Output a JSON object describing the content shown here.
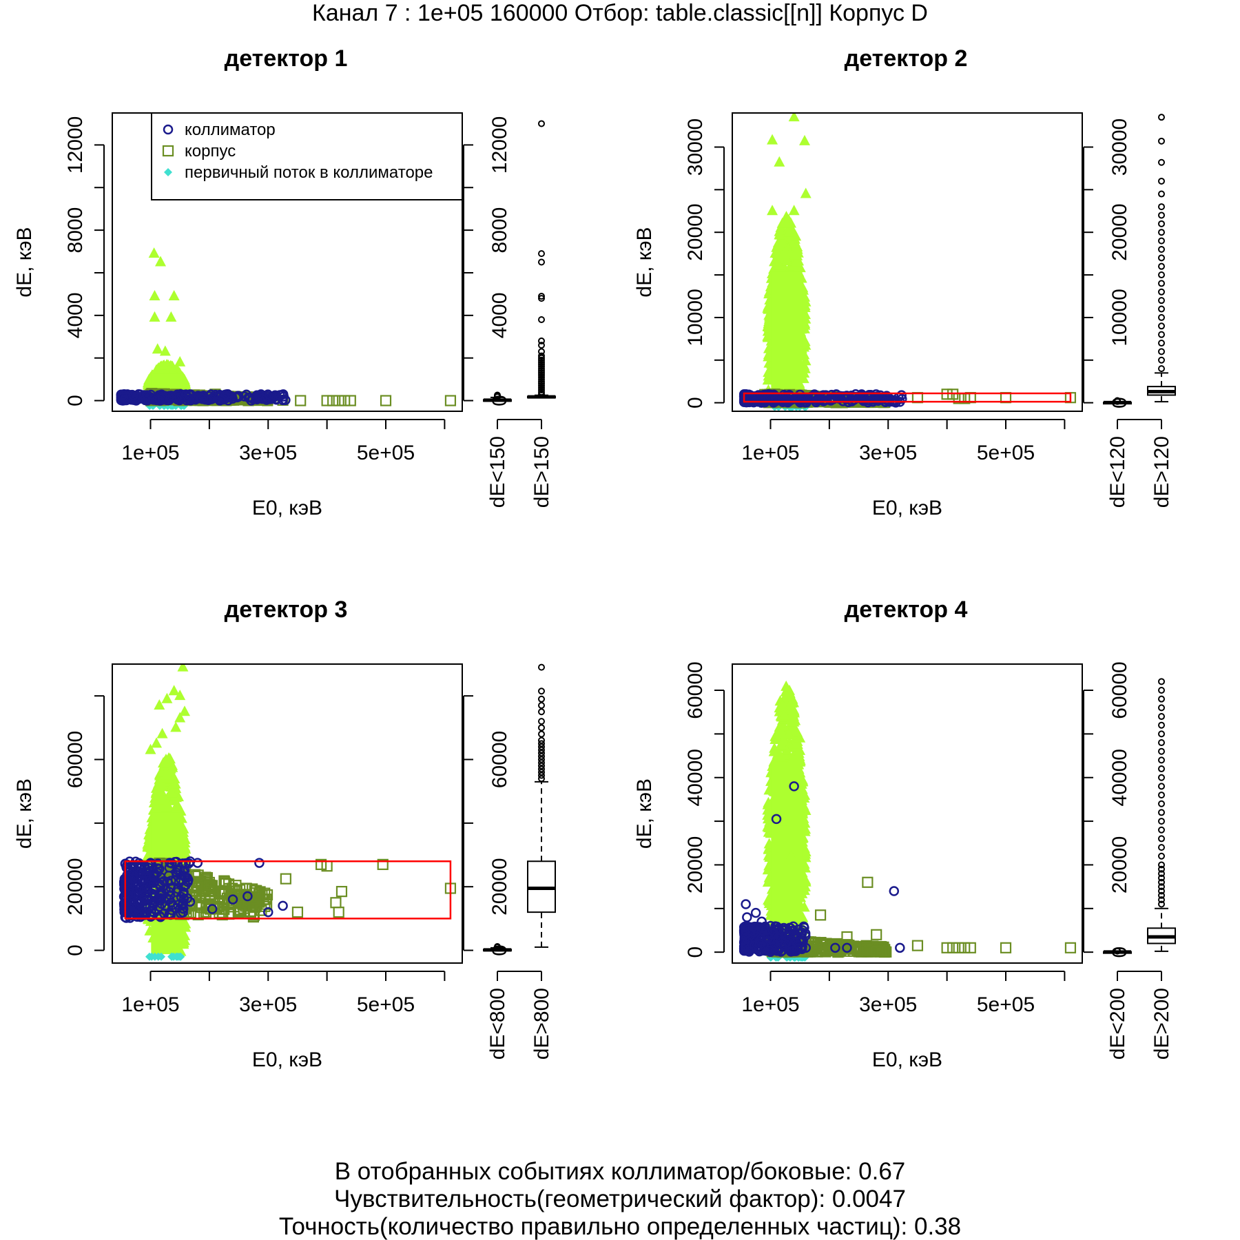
{
  "page": {
    "title": "Канал 7 : 1e+05 160000 Отбор: table.classic[[n]] Корпус D",
    "footer": [
      "В отобранных событиях коллиматор/боковые: 0.67",
      "Чувствительность(геометрический фактор): 0.0047",
      "Точность(количество правильно определенных частиц): 0.38"
    ]
  },
  "colors": {
    "collimator": "#1a1a8c",
    "body": "#6b8e23",
    "primary_in_collimator": "#40e0d0",
    "other": "#adff2f",
    "selection_box": "#ff0000",
    "axis": "#000000"
  },
  "legend": {
    "items": [
      {
        "label": "коллиматор",
        "marker": "circle",
        "color": "#1a1a8c"
      },
      {
        "label": "корпус",
        "marker": "square",
        "color": "#6b8e23"
      },
      {
        "label": "первичный поток в коллиматоре",
        "marker": "diamond",
        "color": "#40e0d0"
      }
    ]
  },
  "chart_data": [
    {
      "type": "scatter",
      "title": "детектор 1",
      "xlabel": "E0, кэВ",
      "ylabel": "dE, кэВ",
      "xlim": [
        35000,
        630000
      ],
      "ylim": [
        -500,
        13500
      ],
      "x_ticks": [
        100000,
        200000,
        300000,
        400000,
        500000,
        600000
      ],
      "x_tick_labels": [
        "1e+05",
        "3e+05",
        "5e+05"
      ],
      "x_tick_label_values": [
        100000,
        300000,
        500000
      ],
      "y_ticks": [
        0,
        2000,
        4000,
        6000,
        8000,
        10000,
        12000
      ],
      "y_tick_labels": [
        "0",
        "4000",
        "8000",
        "12000"
      ],
      "y_tick_label_values": [
        0,
        4000,
        8000,
        12000
      ],
      "legend": true,
      "selection_box": null,
      "other_band": {
        "x": [
          95000,
          160000
        ],
        "y_top_mid": 1800
      },
      "other_points": [
        [
          106000,
          6900
        ],
        [
          117000,
          6500
        ],
        [
          107000,
          4900
        ],
        [
          140000,
          4900
        ],
        [
          107000,
          3900
        ],
        [
          135000,
          3900
        ],
        [
          125000,
          2300
        ],
        [
          150000,
          1800
        ],
        [
          112000,
          2400
        ]
      ],
      "collimator_band": {
        "x": [
          50000,
          330000
        ],
        "y": [
          0,
          300
        ]
      },
      "collimator_points": [
        [
          165000,
          50
        ],
        [
          290000,
          80
        ],
        [
          325000,
          20
        ]
      ],
      "body_band": {
        "x": [
          100000,
          300000
        ],
        "y": [
          0,
          350
        ]
      },
      "body_points": [
        [
          210000,
          300
        ],
        [
          325000,
          20
        ],
        [
          355000,
          0
        ],
        [
          400000,
          0
        ],
        [
          410000,
          0
        ],
        [
          420000,
          0
        ],
        [
          430000,
          0
        ],
        [
          440000,
          0
        ],
        [
          500000,
          0
        ],
        [
          610000,
          0
        ]
      ],
      "box": {
        "groups": [
          "dE<150",
          "dE>150"
        ],
        "low": {
          "min": 0,
          "q1": 5,
          "median": 20,
          "q3": 40,
          "max": 150,
          "outliers": [
            180,
            220,
            260
          ]
        },
        "high": {
          "min": 150,
          "q1": 160,
          "median": 175,
          "q3": 200,
          "max": 250,
          "outliers": [
            300,
            400,
            500,
            600,
            700,
            800,
            900,
            1000,
            1100,
            1200,
            1300,
            1400,
            1500,
            1600,
            1700,
            1800,
            1900,
            2000,
            2100,
            2300,
            2600,
            2800,
            3800,
            4800,
            4900,
            6500,
            6900,
            13000
          ]
        }
      }
    },
    {
      "type": "scatter",
      "title": "детектор 2",
      "xlabel": "E0, кэВ",
      "ylabel": "dE, кэВ",
      "xlim": [
        35000,
        630000
      ],
      "ylim": [
        -1000,
        34000
      ],
      "x_ticks": [
        100000,
        200000,
        300000,
        400000,
        500000,
        600000
      ],
      "x_tick_labels": [
        "1e+05",
        "3e+05",
        "5e+05"
      ],
      "x_tick_label_values": [
        100000,
        300000,
        500000
      ],
      "y_ticks": [
        0,
        5000,
        10000,
        15000,
        20000,
        25000,
        30000
      ],
      "y_tick_labels": [
        "0",
        "10000",
        "20000",
        "30000"
      ],
      "y_tick_label_values": [
        0,
        10000,
        20000,
        30000
      ],
      "legend": false,
      "selection_box": {
        "x": [
          55000,
          610000
        ],
        "y": [
          120,
          1100
        ]
      },
      "other_band": {
        "x": [
          95000,
          160000
        ],
        "y_top_mid": 22000
      },
      "other_points": [
        [
          140000,
          33500
        ],
        [
          103000,
          30800
        ],
        [
          158000,
          30700
        ],
        [
          115000,
          28200
        ],
        [
          160000,
          24500
        ],
        [
          103000,
          22500
        ],
        [
          140000,
          22500
        ],
        [
          120000,
          21000
        ],
        [
          143000,
          19500
        ]
      ],
      "collimator_band": {
        "x": [
          55000,
          330000
        ],
        "y": [
          0,
          1000
        ]
      },
      "collimator_points": [
        [
          165000,
          500
        ],
        [
          320000,
          100
        ]
      ],
      "body_band": {
        "x": [
          90000,
          300000
        ],
        "y": [
          0,
          1100
        ]
      },
      "body_points": [
        [
          350000,
          600
        ],
        [
          400000,
          1000
        ],
        [
          410000,
          1000
        ],
        [
          420000,
          500
        ],
        [
          430000,
          500
        ],
        [
          440000,
          600
        ],
        [
          500000,
          600
        ],
        [
          610000,
          600
        ]
      ],
      "box": {
        "groups": [
          "dE<120",
          "dE>120"
        ],
        "low": {
          "min": 0,
          "q1": 5,
          "median": 20,
          "q3": 40,
          "max": 120,
          "outliers": [
            150,
            200,
            250
          ]
        },
        "high": {
          "min": 120,
          "q1": 900,
          "median": 1300,
          "q3": 1900,
          "max": 3500,
          "outliers": [
            4000,
            5000,
            6000,
            7000,
            8000,
            9000,
            10000,
            11000,
            12000,
            13000,
            14000,
            15000,
            16000,
            17000,
            18000,
            19000,
            20000,
            21000,
            22000,
            23000,
            24500,
            26000,
            28200,
            30700,
            33500
          ]
        }
      }
    },
    {
      "type": "scatter",
      "title": "детектор 3",
      "xlabel": "E0, кэВ",
      "ylabel": "dE, кэВ",
      "xlim": [
        35000,
        630000
      ],
      "ylim": [
        -4000,
        90000
      ],
      "x_ticks": [
        100000,
        200000,
        300000,
        400000,
        500000,
        600000
      ],
      "x_tick_labels": [
        "1e+05",
        "3e+05",
        "5e+05"
      ],
      "x_tick_label_values": [
        100000,
        300000,
        500000
      ],
      "y_ticks": [
        0,
        20000,
        40000,
        60000,
        80000
      ],
      "y_tick_labels": [
        "0",
        "20000",
        "60000"
      ],
      "y_tick_label_values": [
        0,
        20000,
        60000
      ],
      "legend": false,
      "selection_box": {
        "x": [
          57000,
          610000
        ],
        "y": [
          10000,
          28000
        ]
      },
      "other_band": {
        "x": [
          95000,
          160000
        ],
        "y_top_mid": 62000
      },
      "other_points": [
        [
          155000,
          89000
        ],
        [
          140000,
          81500
        ],
        [
          150000,
          80000
        ],
        [
          128000,
          79000
        ],
        [
          115000,
          77000
        ],
        [
          158000,
          75000
        ],
        [
          150000,
          73000
        ],
        [
          143000,
          70000
        ],
        [
          120000,
          68000
        ],
        [
          110000,
          65000
        ],
        [
          100000,
          63000
        ]
      ],
      "collimator_band": {
        "x": [
          55000,
          170000
        ],
        "y": [
          10000,
          28000
        ]
      },
      "collimator_points": [
        [
          180000,
          27500
        ],
        [
          205000,
          13000
        ],
        [
          240000,
          16000
        ],
        [
          265000,
          17000
        ],
        [
          300000,
          12000
        ],
        [
          325000,
          14000
        ],
        [
          285000,
          27500
        ]
      ],
      "body_band": {
        "x": [
          115000,
          300000
        ],
        "y": [
          11000,
          28000
        ]
      },
      "body_points": [
        [
          330000,
          22500
        ],
        [
          350000,
          12000
        ],
        [
          390000,
          27000
        ],
        [
          400000,
          26500
        ],
        [
          415000,
          15000
        ],
        [
          420000,
          12000
        ],
        [
          425000,
          18500
        ],
        [
          495000,
          27000
        ],
        [
          610000,
          19500
        ],
        [
          275000,
          10500
        ]
      ],
      "box": {
        "groups": [
          "dE<800",
          "dE>800"
        ],
        "low": {
          "min": 0,
          "q1": 50,
          "median": 150,
          "q3": 300,
          "max": 800,
          "outliers": [
            1000,
            1200
          ]
        },
        "high": {
          "min": 1000,
          "q1": 12000,
          "median": 19500,
          "q3": 28000,
          "max": 53000,
          "outliers": [
            54000,
            55000,
            56000,
            57000,
            58000,
            59000,
            60000,
            61000,
            62000,
            63000,
            64000,
            65000,
            66000,
            68000,
            70000,
            72000,
            75000,
            77000,
            79000,
            81500,
            89000
          ]
        }
      }
    },
    {
      "type": "scatter",
      "title": "детектор 4",
      "xlabel": "E0, кэВ",
      "ylabel": "dE, кэВ",
      "xlim": [
        35000,
        630000
      ],
      "ylim": [
        -2500,
        66000
      ],
      "x_ticks": [
        100000,
        200000,
        300000,
        400000,
        500000,
        600000
      ],
      "x_tick_labels": [
        "1e+05",
        "3e+05",
        "5e+05"
      ],
      "x_tick_label_values": [
        100000,
        300000,
        500000
      ],
      "y_ticks": [
        0,
        10000,
        20000,
        30000,
        40000,
        50000,
        60000
      ],
      "y_tick_labels": [
        "0",
        "20000",
        "40000",
        "60000"
      ],
      "y_tick_label_values": [
        0,
        20000,
        40000,
        60000
      ],
      "legend": false,
      "selection_box": null,
      "other_band": {
        "x": [
          95000,
          160000
        ],
        "y_top_mid": 62000
      },
      "other_points": [
        [
          150000,
          49000
        ],
        [
          145000,
          40000
        ],
        [
          155000,
          39000
        ],
        [
          120000,
          30000
        ],
        [
          135000,
          22000
        ],
        [
          160000,
          16000
        ],
        [
          150000,
          21000
        ]
      ],
      "collimator_band": {
        "x": [
          55000,
          160000
        ],
        "y": [
          0,
          6000
        ]
      },
      "collimator_points": [
        [
          58000,
          11000
        ],
        [
          60000,
          8000
        ],
        [
          75000,
          9000
        ],
        [
          85000,
          7000
        ],
        [
          110000,
          30500
        ],
        [
          140000,
          38000
        ],
        [
          210000,
          1000
        ],
        [
          310000,
          14000
        ],
        [
          100000,
          6000
        ],
        [
          125000,
          2000
        ],
        [
          160000,
          1000
        ],
        [
          230000,
          1000
        ],
        [
          320000,
          1000
        ]
      ],
      "body_band": {
        "x": [
          100000,
          300000
        ],
        "y": [
          0,
          3000
        ]
      },
      "body_points": [
        [
          265000,
          16000
        ],
        [
          185000,
          8500
        ],
        [
          230000,
          3500
        ],
        [
          280000,
          4000
        ],
        [
          350000,
          1500
        ],
        [
          400000,
          1000
        ],
        [
          410000,
          1000
        ],
        [
          420000,
          1000
        ],
        [
          430000,
          1000
        ],
        [
          440000,
          1000
        ],
        [
          500000,
          1000
        ],
        [
          610000,
          1000
        ]
      ],
      "box": {
        "groups": [
          "dE<200",
          "dE>200"
        ],
        "low": {
          "min": 0,
          "q1": 10,
          "median": 40,
          "q3": 80,
          "max": 200,
          "outliers": [
            250,
            300
          ]
        },
        "high": {
          "min": 200,
          "q1": 2000,
          "median": 3500,
          "q3": 5500,
          "max": 10000,
          "outliers": [
            11000,
            12000,
            13000,
            14000,
            15000,
            16000,
            17000,
            18000,
            19000,
            20000,
            22000,
            24000,
            26000,
            28000,
            30000,
            32000,
            34000,
            36000,
            38000,
            40000,
            42000,
            44000,
            46000,
            48000,
            50000,
            52000,
            54000,
            56000,
            58000,
            60000,
            62000
          ]
        }
      }
    }
  ]
}
